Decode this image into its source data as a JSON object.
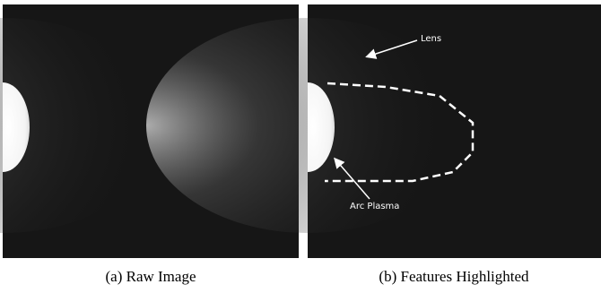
{
  "panels": [
    {
      "caption": "(a) Raw Image"
    },
    {
      "caption": "(b) Features Highlighted",
      "annotations": [
        "Lens",
        "Arc Plasma"
      ]
    }
  ]
}
